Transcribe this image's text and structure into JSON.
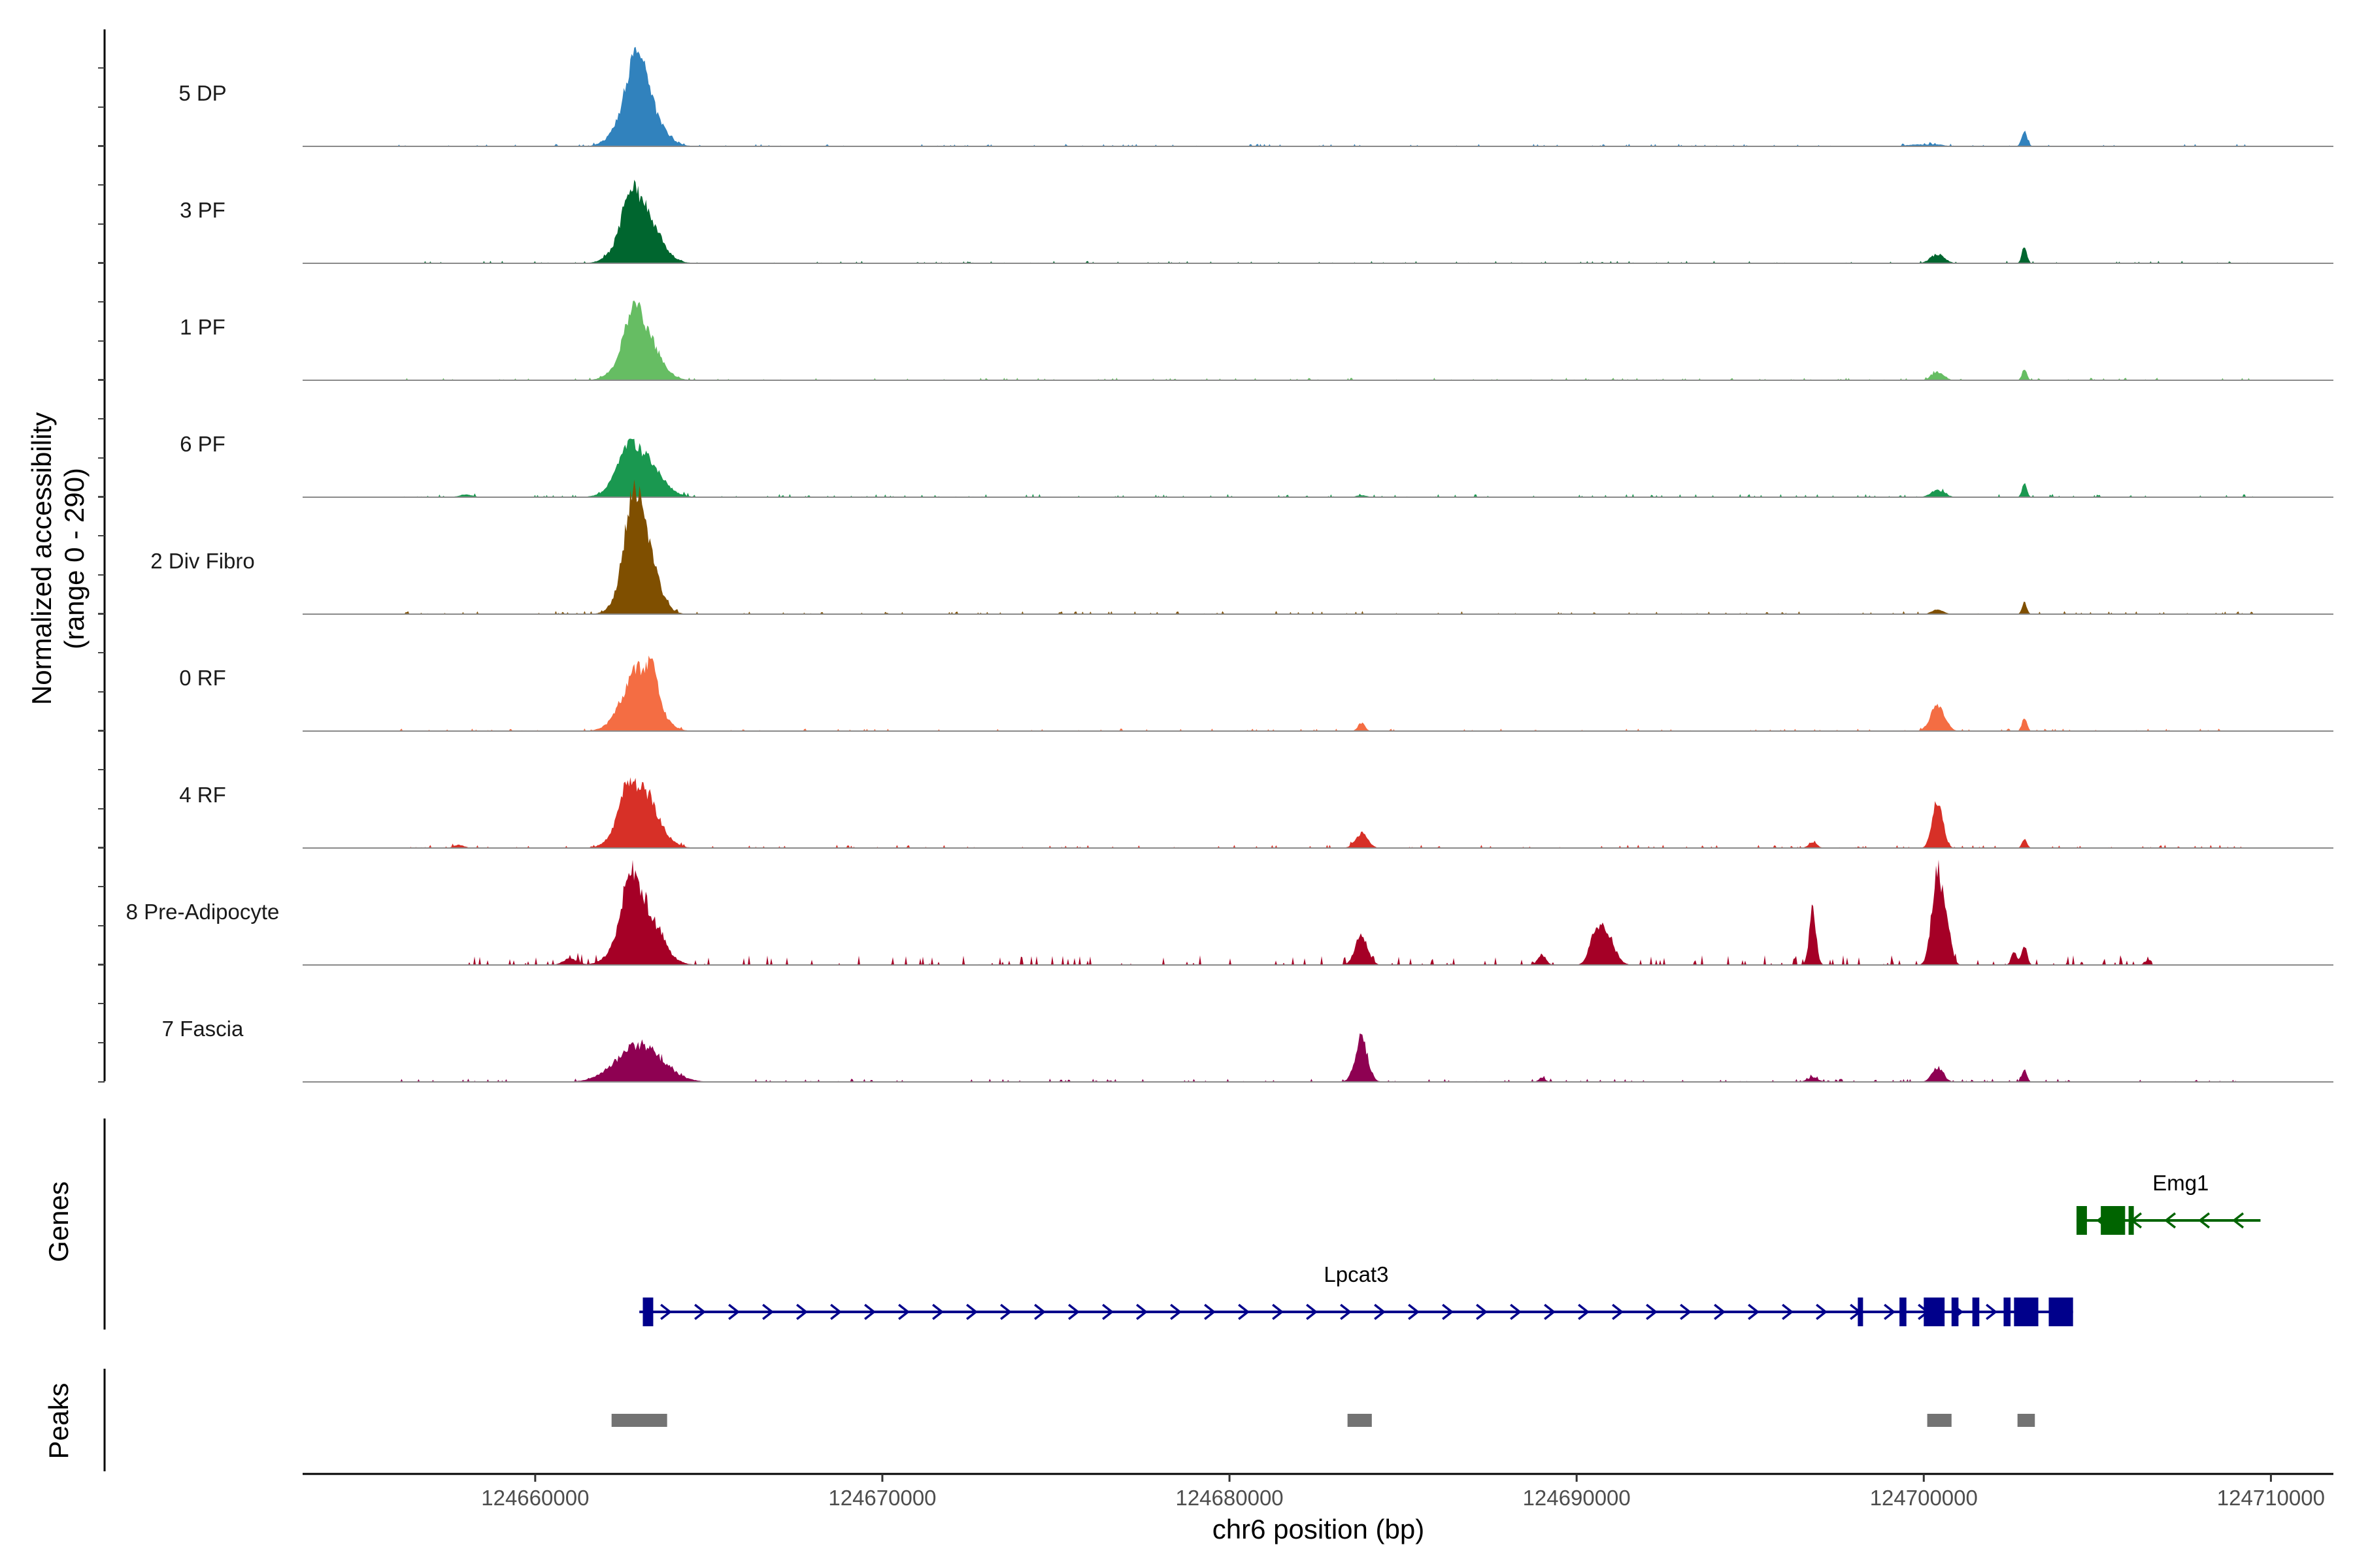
{
  "chart_data": {
    "type": "area",
    "title": "",
    "xlabel": "chr6 position (bp)",
    "ylabel": "Normalized accessibility",
    "ylabel_range": "(range 0 - 290)",
    "ylim": [
      0,
      290
    ],
    "xlim": [
      124653300,
      124711800
    ],
    "xticks": [
      {
        "value": 124660000,
        "label": "124660000"
      },
      {
        "value": 124670000,
        "label": "124670000"
      },
      {
        "value": 124680000,
        "label": "124680000"
      },
      {
        "value": 124690000,
        "label": "124690000"
      },
      {
        "value": 124700000,
        "label": "124700000"
      },
      {
        "value": 124710000,
        "label": "124710000"
      }
    ],
    "series": [
      {
        "name": "5 DP",
        "color": "#3182bd",
        "noise": 3,
        "data_start": 124656000,
        "data_end": 124709500,
        "peaks": [
          [
            124663000,
            180,
            480
          ],
          [
            124662900,
            120,
            250
          ],
          [
            124702900,
            45,
            80
          ],
          [
            124699800,
            6,
            300
          ],
          [
            124700400,
            5,
            200
          ]
        ]
      },
      {
        "name": "3 PF",
        "color": "#00662f",
        "noise": 3,
        "data_start": 124656000,
        "data_end": 124709500,
        "peaks": [
          [
            124663000,
            185,
            480
          ],
          [
            124662700,
            70,
            200
          ],
          [
            124700400,
            28,
            200
          ],
          [
            124702900,
            55,
            70
          ]
        ]
      },
      {
        "name": "1 PF",
        "color": "#66bd63",
        "noise": 3,
        "data_start": 124656000,
        "data_end": 124709500,
        "peaks": [
          [
            124663000,
            175,
            460
          ],
          [
            124662800,
            70,
            200
          ],
          [
            124700400,
            25,
            180
          ],
          [
            124702900,
            35,
            70
          ]
        ]
      },
      {
        "name": "6 PF",
        "color": "#1a9850",
        "noise": 4,
        "data_start": 124656000,
        "data_end": 124709500,
        "peaks": [
          [
            124663000,
            135,
            520
          ],
          [
            124662600,
            55,
            250
          ],
          [
            124700400,
            22,
            200
          ],
          [
            124702900,
            40,
            70
          ],
          [
            124658000,
            8,
            200
          ],
          [
            124683800,
            6,
            150
          ]
        ]
      },
      {
        "name": "2 Div Fibro",
        "color": "#7f4f00",
        "noise": 4,
        "data_start": 124656000,
        "data_end": 124709500,
        "peaks": [
          [
            124663000,
            285,
            400
          ],
          [
            124662800,
            120,
            220
          ],
          [
            124700400,
            15,
            160
          ],
          [
            124702900,
            35,
            70
          ]
        ]
      },
      {
        "name": "0 RF",
        "color": "#f46d43",
        "noise": 3,
        "data_start": 124656000,
        "data_end": 124709500,
        "peaks": [
          [
            124663000,
            190,
            460
          ],
          [
            124663400,
            70,
            150
          ],
          [
            124700400,
            80,
            200
          ],
          [
            124702900,
            40,
            70
          ],
          [
            124683800,
            25,
            100
          ]
        ]
      },
      {
        "name": "4 RF",
        "color": "#d73027",
        "noise": 4,
        "data_start": 124656000,
        "data_end": 124709500,
        "peaks": [
          [
            124663000,
            185,
            480
          ],
          [
            124662600,
            60,
            200
          ],
          [
            124700400,
            150,
            150
          ],
          [
            124702900,
            30,
            70
          ],
          [
            124683800,
            45,
            180
          ],
          [
            124696800,
            18,
            120
          ],
          [
            124657800,
            10,
            150
          ]
        ]
      },
      {
        "name": "8 Pre-Adipocyte",
        "color": "#a50026",
        "noise": 12,
        "data_start": 124657800,
        "data_end": 124706600,
        "peaks": [
          [
            124663000,
            200,
            500
          ],
          [
            124662700,
            110,
            200
          ],
          [
            124700400,
            290,
            160
          ],
          [
            124696800,
            160,
            100
          ],
          [
            124683800,
            90,
            180
          ],
          [
            124690800,
            110,
            250
          ],
          [
            124690500,
            50,
            150
          ],
          [
            124689000,
            30,
            120
          ],
          [
            124700700,
            80,
            120
          ],
          [
            124702600,
            40,
            80
          ],
          [
            124702900,
            55,
            80
          ],
          [
            124706500,
            15,
            120
          ],
          [
            124661000,
            20,
            200
          ]
        ]
      },
      {
        "name": "7 Fascia",
        "color": "#8e0152",
        "noise": 4,
        "data_start": 124656000,
        "data_end": 124709500,
        "peaks": [
          [
            124663000,
            115,
            650
          ],
          [
            124683800,
            130,
            180
          ],
          [
            124700400,
            45,
            160
          ],
          [
            124702900,
            38,
            70
          ],
          [
            124696800,
            15,
            150
          ],
          [
            124689000,
            12,
            100
          ]
        ]
      }
    ],
    "genes_label": "Genes",
    "genes": [
      {
        "name": "Lpcat3",
        "strand": "+",
        "color": "#00008b",
        "start": 124663000,
        "end": 124704300,
        "row": 1,
        "exons": [
          [
            124663100,
            124663400
          ],
          [
            124698100,
            124698200
          ],
          [
            124699300,
            124699500
          ],
          [
            124700000,
            124700600
          ],
          [
            124700800,
            124701000
          ],
          [
            124701400,
            124701600
          ],
          [
            124702300,
            124702500
          ],
          [
            124702600,
            124703300
          ],
          [
            124703600,
            124704300
          ]
        ]
      },
      {
        "name": "Emg1",
        "strand": "-",
        "color": "#006400",
        "start": 124704400,
        "end": 124709700,
        "row": 0,
        "exons": [
          [
            124704400,
            124704700
          ],
          [
            124705100,
            124705800
          ],
          [
            124705900,
            124706000
          ]
        ]
      }
    ],
    "peaks_label": "Peaks",
    "peak_regions": [
      {
        "start": 124662200,
        "end": 124663800
      },
      {
        "start": 124683400,
        "end": 124684100
      },
      {
        "start": 124700100,
        "end": 124700800
      },
      {
        "start": 124702700,
        "end": 124703200
      }
    ],
    "peak_region_color": "#737373"
  }
}
